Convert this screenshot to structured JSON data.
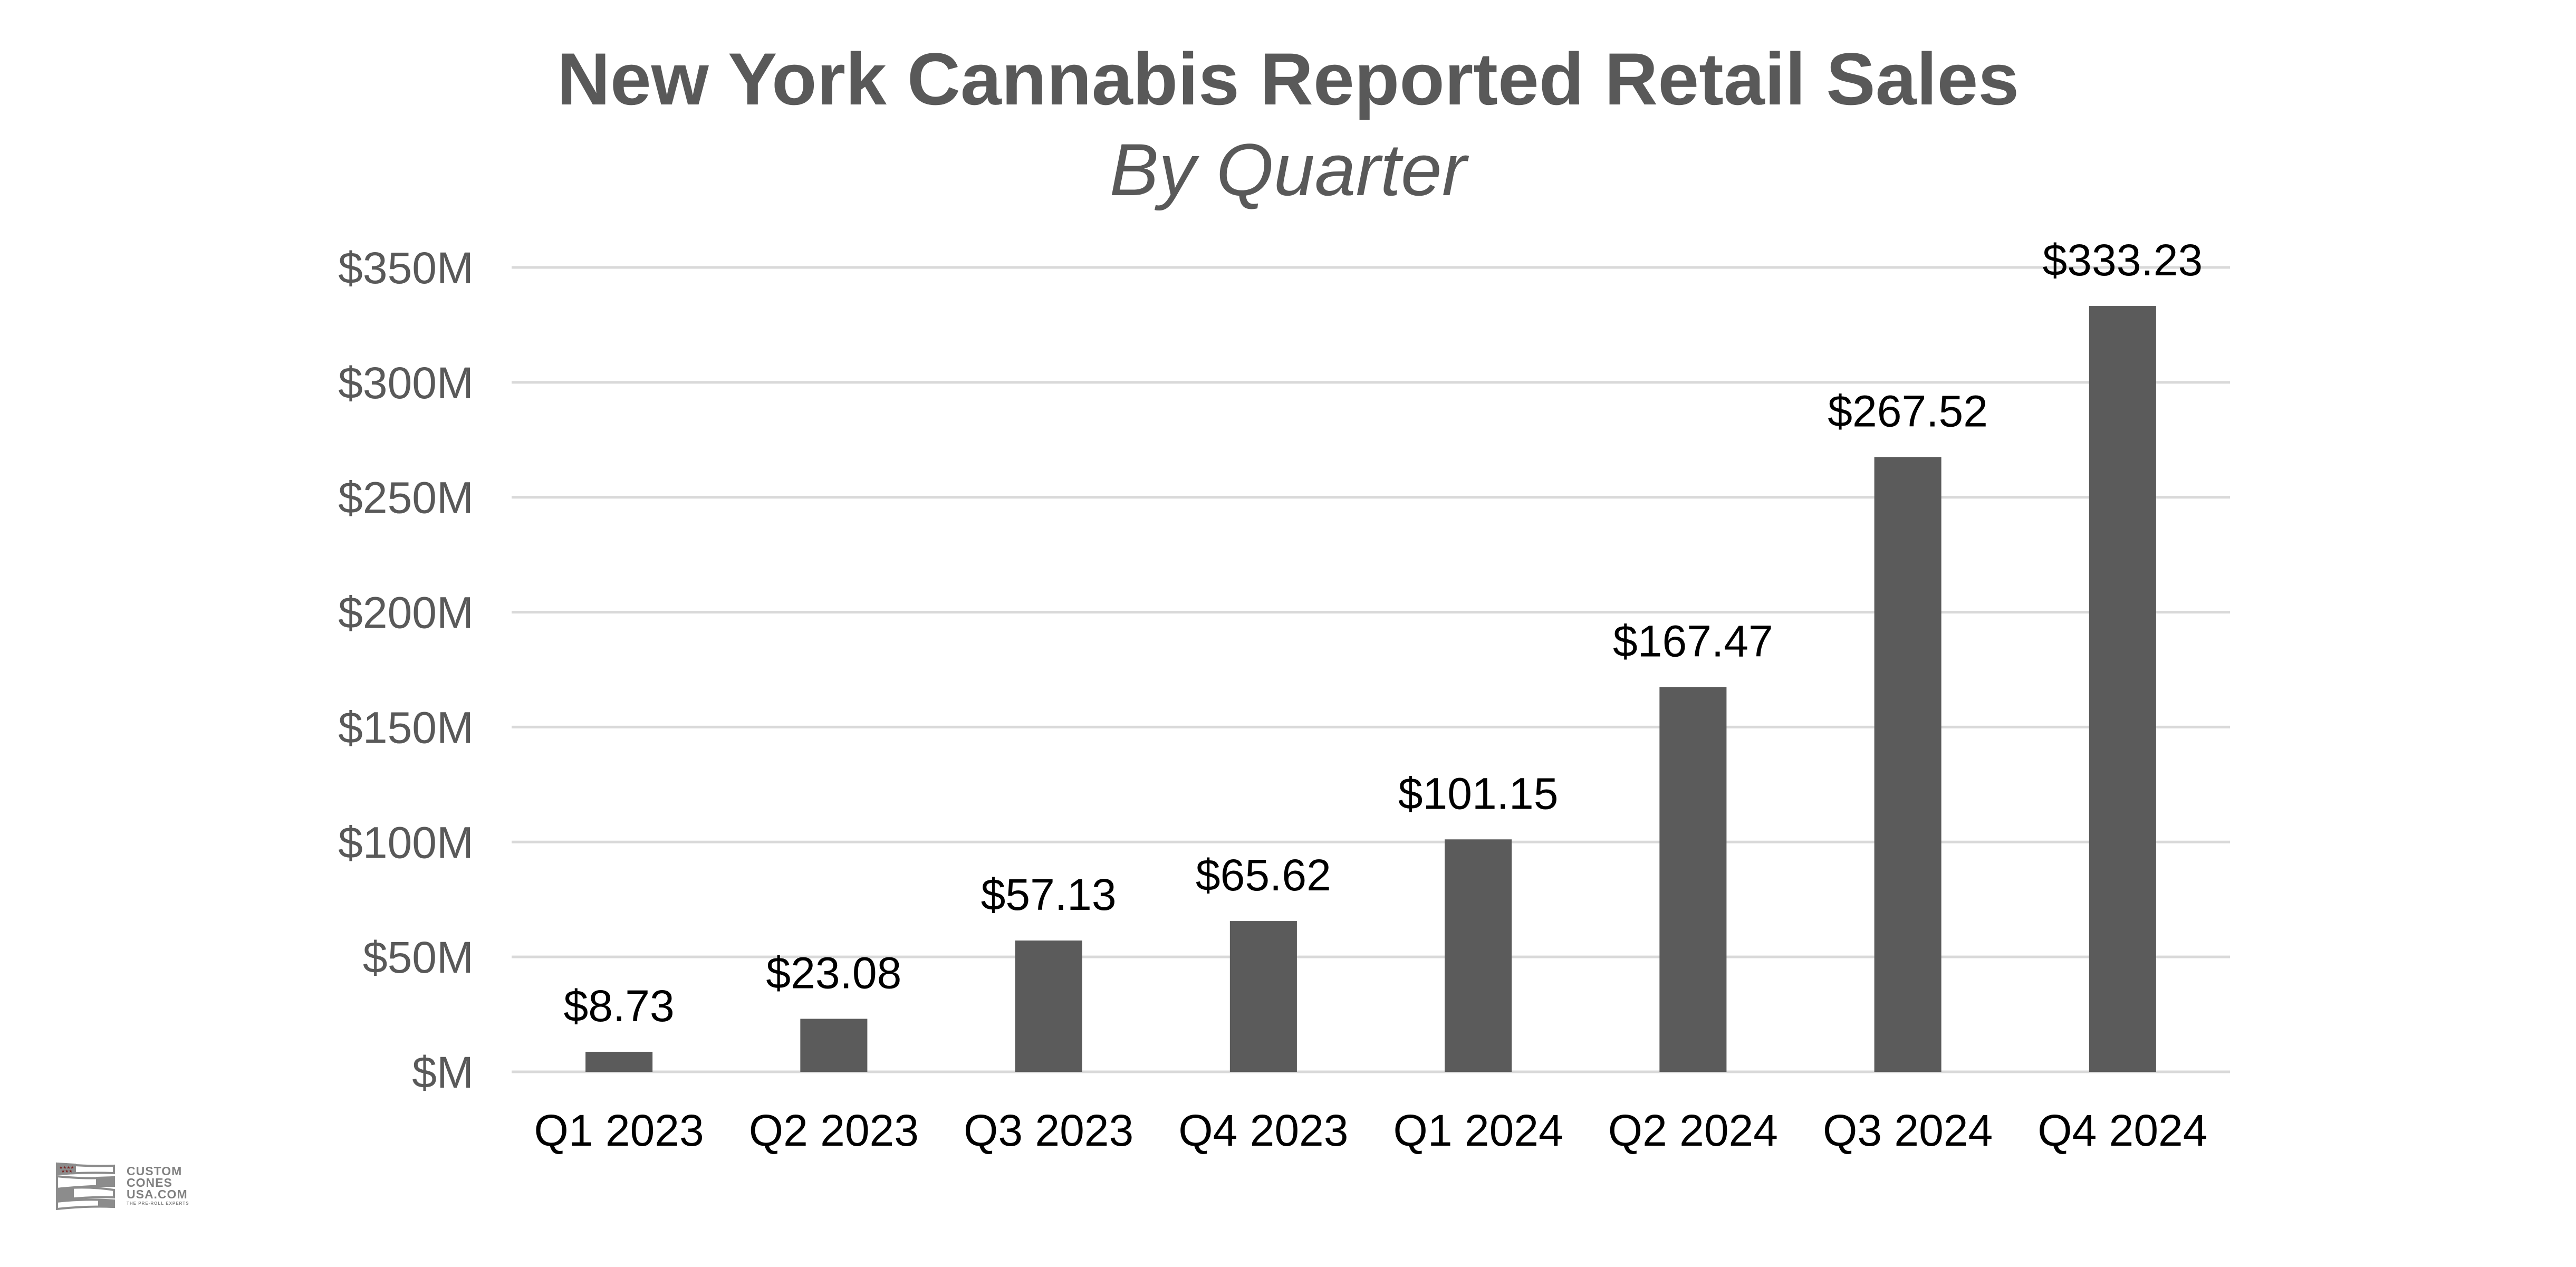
{
  "chart_data": {
    "type": "bar",
    "title": "New York Cannabis Reported Retail Sales",
    "subtitle": "By Quarter",
    "xlabel": "",
    "ylabel": "",
    "categories": [
      "Q1 2023",
      "Q2 2023",
      "Q3 2023",
      "Q4 2023",
      "Q1 2024",
      "Q2 2024",
      "Q3 2024",
      "Q4 2024"
    ],
    "values": [
      8.73,
      23.08,
      57.13,
      65.62,
      101.15,
      167.47,
      267.52,
      333.23
    ],
    "data_labels": [
      "$8.73",
      "$23.08",
      "$57.13",
      "$65.62",
      "$101.15",
      "$167.47",
      "$267.52",
      "$333.23"
    ],
    "units": "millions USD",
    "ylim": [
      0,
      350
    ],
    "yticks": [
      0,
      50,
      100,
      150,
      200,
      250,
      300,
      350
    ],
    "ytick_labels": [
      "$M",
      "$50M",
      "$100M",
      "$150M",
      "$200M",
      "$250M",
      "$300M",
      "$350M"
    ],
    "grid": true,
    "legend": "none",
    "colors": {
      "bar": "#5b5b5b",
      "grid": "#d9d9d9",
      "title": "#595959",
      "tick_label": "#595959",
      "category_label": "#000000",
      "data_label": "#000000"
    }
  },
  "logo": {
    "lines": [
      "CUSTOM",
      "CONES",
      "USA.COM"
    ],
    "tagline": "THE PRE-ROLL EXPERTS"
  }
}
